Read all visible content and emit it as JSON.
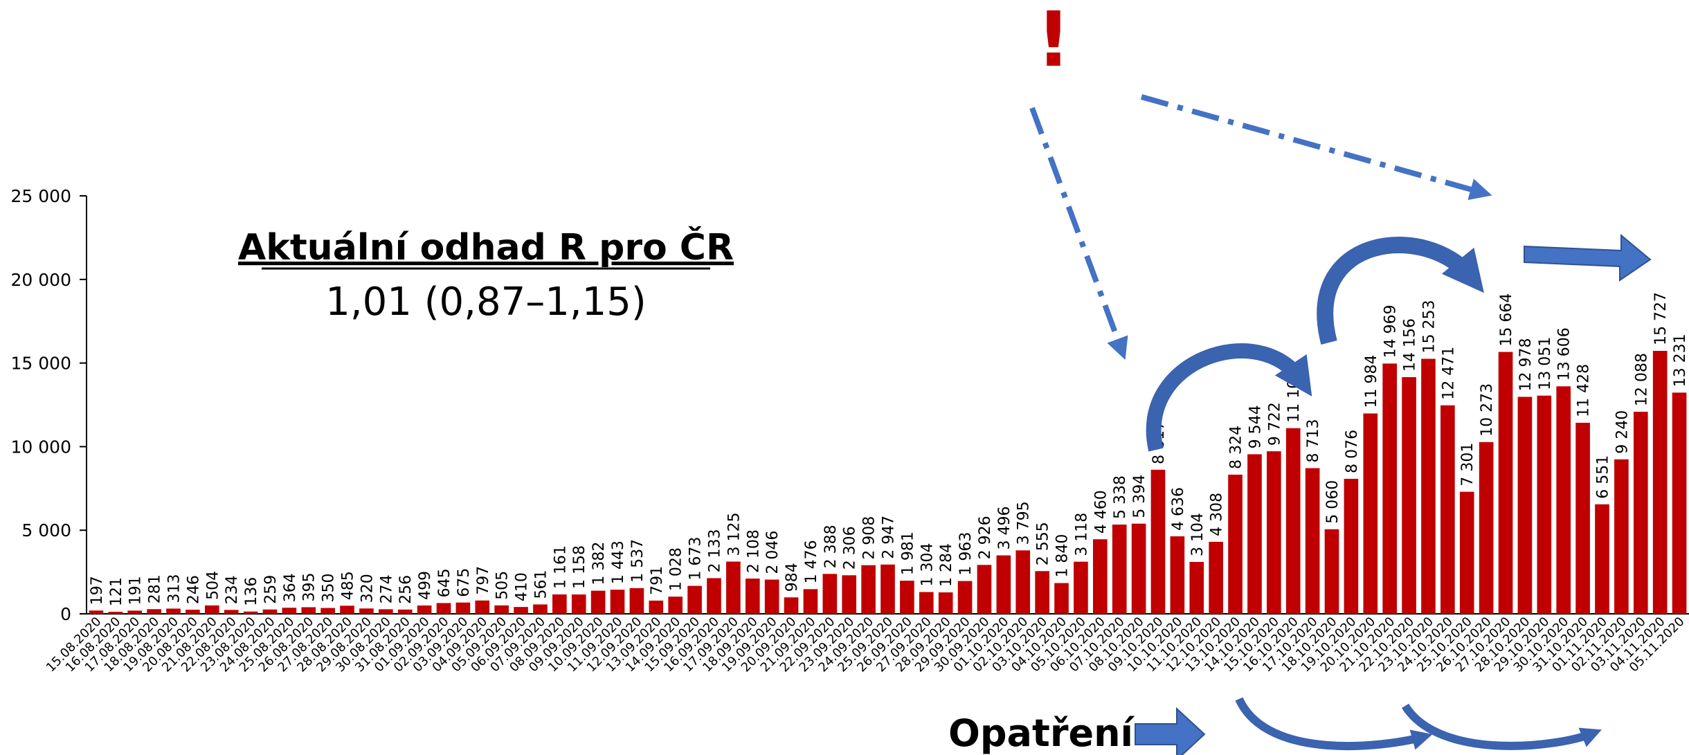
{
  "chart_data": {
    "type": "bar",
    "title": "Aktuální odhad R pro ČR",
    "subtitle": "1,01 (0,87–1,15)",
    "annotations": [
      "!",
      "Opatření"
    ],
    "categories": [
      "15.08.2020",
      "16.08.2020",
      "17.08.2020",
      "18.08.2020",
      "19.08.2020",
      "20.08.2020",
      "21.08.2020",
      "22.08.2020",
      "23.08.2020",
      "24.08.2020",
      "25.08.2020",
      "26.08.2020",
      "27.08.2020",
      "28.08.2020",
      "29.08.2020",
      "30.08.2020",
      "31.08.2020",
      "01.09.2020",
      "02.09.2020",
      "03.09.2020",
      "04.09.2020",
      "05.09.2020",
      "06.09.2020",
      "07.09.2020",
      "08.09.2020",
      "09.09.2020",
      "10.09.2020",
      "11.09.2020",
      "12.09.2020",
      "13.09.2020",
      "14.09.2020",
      "15.09.2020",
      "16.09.2020",
      "17.09.2020",
      "18.09.2020",
      "19.09.2020",
      "20.09.2020",
      "21.09.2020",
      "22.09.2020",
      "23.09.2020",
      "24.09.2020",
      "25.09.2020",
      "26.09.2020",
      "27.09.2020",
      "28.09.2020",
      "29.09.2020",
      "30.09.2020",
      "01.10.2020",
      "02.10.2020",
      "03.10.2020",
      "04.10.2020",
      "05.10.2020",
      "06.10.2020",
      "07.10.2020",
      "08.10.2020",
      "09.10.2020",
      "10.10.2020",
      "11.10.2020",
      "12.10.2020",
      "13.10.2020",
      "14.10.2020",
      "15.10.2020",
      "16.10.2020",
      "17.10.2020",
      "18.10.2020",
      "19.10.2020",
      "20.10.2020",
      "21.10.2020",
      "22.10.2020",
      "23.10.2020",
      "24.10.2020",
      "25.10.2020",
      "26.10.2020",
      "27.10.2020",
      "28.10.2020",
      "29.10.2020",
      "30.10.2020",
      "31.10.2020",
      "01.11.2020",
      "02.11.2020",
      "03.11.2020",
      "04.11.2020",
      "05.11.2020"
    ],
    "values": [
      197,
      121,
      191,
      281,
      313,
      246,
      504,
      234,
      136,
      259,
      364,
      395,
      350,
      485,
      320,
      274,
      256,
      499,
      645,
      675,
      797,
      505,
      410,
      561,
      1161,
      1158,
      1382,
      1443,
      1537,
      791,
      1028,
      1673,
      2133,
      3125,
      2108,
      2046,
      984,
      1476,
      2388,
      2306,
      2908,
      2947,
      1981,
      1304,
      1284,
      1963,
      2926,
      3496,
      3795,
      2555,
      1840,
      3118,
      4460,
      5338,
      5394,
      8617,
      4636,
      3104,
      4308,
      8324,
      9544,
      9722,
      11105,
      8713,
      5060,
      8076,
      11984,
      14969,
      14156,
      15253,
      12471,
      7301,
      10273,
      15664,
      12978,
      13051,
      13606,
      11428,
      6551,
      9240,
      12088,
      15727,
      13231
    ],
    "value_labels": [
      "197",
      "121",
      "191",
      "281",
      "313",
      "246",
      "504",
      "234",
      "136",
      "259",
      "364",
      "395",
      "350",
      "485",
      "320",
      "274",
      "256",
      "499",
      "645",
      "675",
      "797",
      "505",
      "410",
      "561",
      "1 161",
      "1 158",
      "1 382",
      "1 443",
      "1 537",
      "791",
      "1 028",
      "1 673",
      "2 133",
      "3 125",
      "2 108",
      "2 046",
      "984",
      "1 476",
      "2 388",
      "2 306",
      "2 908",
      "2 947",
      "1 981",
      "1 304",
      "1 284",
      "1 963",
      "2 926",
      "3 496",
      "3 795",
      "2 555",
      "1 840",
      "3 118",
      "4 460",
      "5 338",
      "5 394",
      "8 617",
      "4 636",
      "3 104",
      "4 308",
      "8 324",
      "9 544",
      "9 722",
      "11 105",
      "8 713",
      "5 060",
      "8 076",
      "11 984",
      "14 969",
      "14 156",
      "15 253",
      "12 471",
      "7 301",
      "10 273",
      "15 664",
      "12 978",
      "13 051",
      "13 606",
      "11 428",
      "6 551",
      "9 240",
      "12 088",
      "15 727",
      "13 231"
    ],
    "color": "#c00000",
    "ylim": [
      0,
      25000
    ],
    "yticks": [
      0,
      {
        "value": 5000,
        "label": "5 000"
      },
      {
        "value": 10000,
        "label": "10 000"
      },
      {
        "value": 15000,
        "label": "15 000"
      },
      {
        "value": 20000,
        "label": "20 000"
      },
      {
        "value": 25000,
        "label": "25 000"
      }
    ],
    "grid": false
  }
}
